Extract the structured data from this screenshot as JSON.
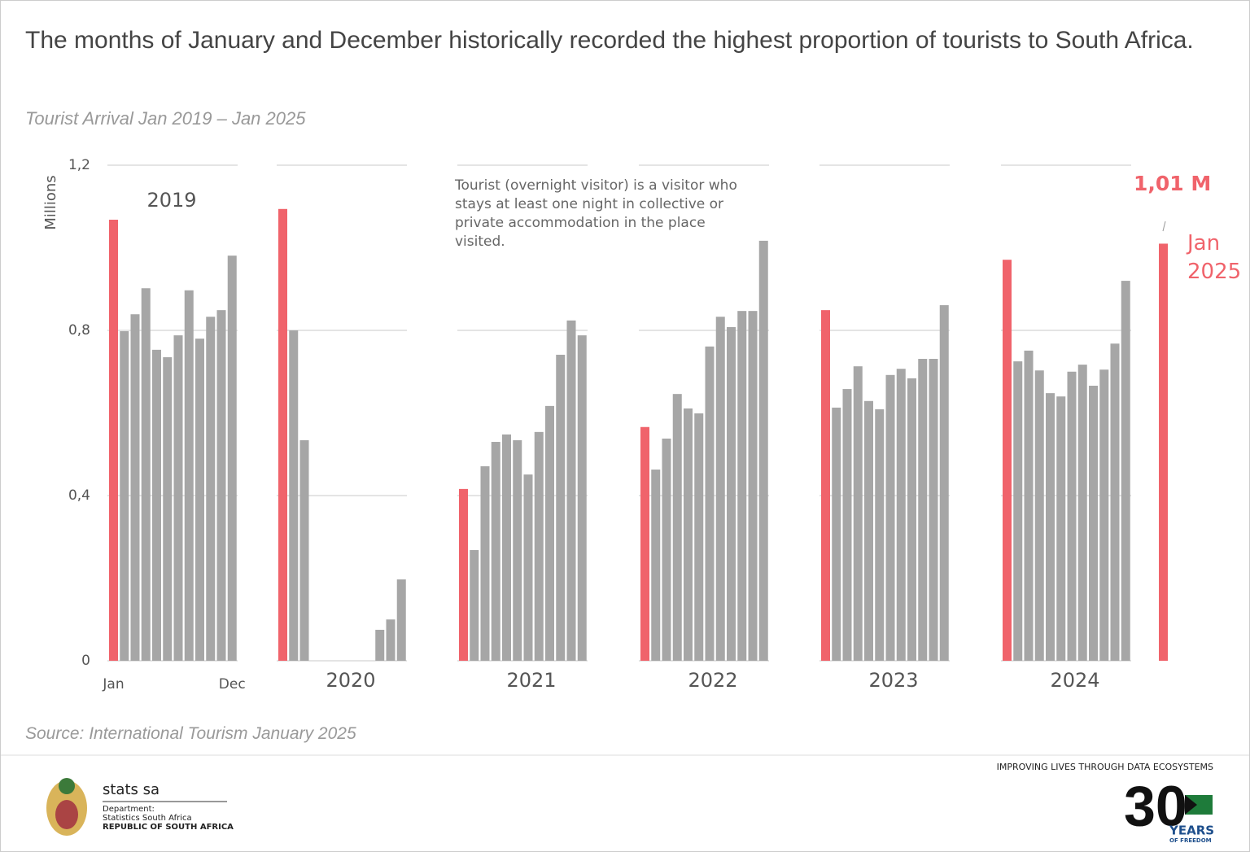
{
  "chart_data": {
    "type": "bar",
    "title": "The months of January and December historically recorded the highest proportion of tourists to South Africa.",
    "subtitle": "Tourist Arrival Jan 2019 – Jan 2025",
    "y_label": "Millions",
    "annotation": "Tourist (overnight visitor) is a visitor who stays at least one night in collective or private accommodation in the place visited.",
    "source": "Source: International Tourism January 2025",
    "categories": [
      "Jan",
      null,
      null,
      null,
      null,
      null,
      null,
      null,
      null,
      null,
      null,
      "Dec"
    ],
    "highlight_color": "#f0636b",
    "series": [
      {
        "name": "2019",
        "color": "#a6a6a6",
        "values": [
          1.068,
          0.798,
          0.839,
          0.902,
          0.753,
          0.735,
          0.788,
          0.897,
          0.78,
          0.833,
          0.849,
          0.981
        ]
      },
      {
        "name": "2020",
        "color": "#a6a6a6",
        "values": [
          1.094,
          0.8,
          0.534,
          0,
          0,
          0,
          0,
          0,
          0,
          0.075,
          0.1,
          0.197
        ]
      },
      {
        "name": "2021",
        "color": "#a6a6a6",
        "values": [
          0.416,
          0.268,
          0.471,
          0.53,
          0.548,
          0.534,
          0.451,
          0.554,
          0.617,
          0.741,
          0.824,
          0.788
        ]
      },
      {
        "name": "2022",
        "color": "#a6a6a6",
        "values": [
          0.566,
          0.463,
          0.538,
          0.646,
          0.611,
          0.599,
          0.761,
          0.833,
          0.808,
          0.847,
          0.847,
          1.017
        ]
      },
      {
        "name": "2023",
        "color": "#a6a6a6",
        "values": [
          0.849,
          0.613,
          0.658,
          0.713,
          0.629,
          0.609,
          0.692,
          0.707,
          0.684,
          0.731,
          0.731,
          0.861
        ]
      },
      {
        "name": "2024",
        "color": "#a6a6a6",
        "values": [
          0.971,
          0.725,
          0.751,
          0.703,
          0.648,
          0.64,
          0.7,
          0.717,
          0.666,
          0.705,
          0.768,
          0.92
        ]
      }
    ],
    "latest": {
      "label": "Jan 2025",
      "value": 1.01,
      "value_label": "1,01 M",
      "color": "#f0636b"
    },
    "ylim": [
      0,
      1.2
    ],
    "yticks": [
      0,
      {
        "value": 0.4,
        "label": "0,4"
      },
      {
        "value": 0.8,
        "label": "0,8"
      },
      {
        "value": 1.2,
        "label": "1,2"
      }
    ],
    "grid": true
  },
  "footer": {
    "org": "stats sa",
    "dept_label": "Department:",
    "dept": "Statistics South Africa",
    "country": "REPUBLIC OF SOUTH AFRICA",
    "slogan": "IMPROVING LIVES THROUGH DATA ECOSYSTEMS",
    "anniversary_number": "30",
    "anniversary_text": "YEARS",
    "anniversary_sub": "OF FREEDOM"
  }
}
